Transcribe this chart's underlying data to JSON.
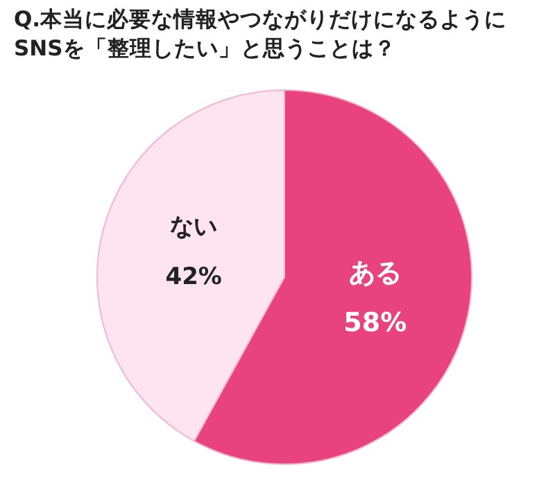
{
  "chart_data": {
    "type": "pie",
    "title": "Q.本当に必要な情報やつながりだけになるようにSNSを「整理したい」と思うことは？",
    "categories": [
      "ある",
      "ない"
    ],
    "values": [
      58,
      42
    ],
    "colors": [
      "#e8437c",
      "#fde4ef"
    ],
    "value_labels": [
      "58%",
      "42%"
    ]
  }
}
